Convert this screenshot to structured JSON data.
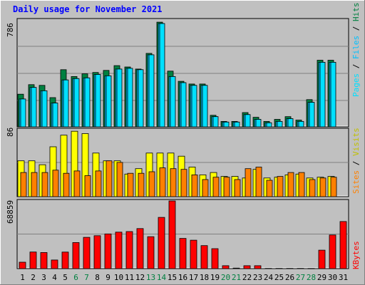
{
  "title": "Daily usage for November 2021",
  "colors": {
    "background": "#c0c0c0",
    "title": "#0000ff",
    "hits": "#008040",
    "files": "#00c0ff",
    "pages": "#00e0ff",
    "visits": "#ffff00",
    "sites": "#ff8000",
    "kbytes": "#ff0000",
    "weekend_label": "#008040",
    "weekday_label": "#000000"
  },
  "chart_data": [
    {
      "type": "bar",
      "title": "Daily usage for November 2021",
      "ylim": [
        0,
        786
      ],
      "y_tick_label": "786",
      "side_label": {
        "parts": [
          "Pages",
          "Files",
          "Hits"
        ],
        "separator": " / "
      },
      "categories": [
        "1",
        "2",
        "3",
        "4",
        "5",
        "6",
        "7",
        "8",
        "9",
        "10",
        "11",
        "12",
        "13",
        "14",
        "15",
        "16",
        "17",
        "18",
        "19",
        "20",
        "21",
        "22",
        "23",
        "24",
        "25",
        "26",
        "27",
        "28",
        "29",
        "30",
        "31"
      ],
      "weekend_days": [
        "6",
        "7",
        "13",
        "14",
        "20",
        "21",
        "27",
        "28"
      ],
      "series": [
        {
          "name": "Hits",
          "values": [
            240,
            310,
            305,
            215,
            420,
            370,
            390,
            400,
            415,
            450,
            440,
            425,
            540,
            770,
            410,
            335,
            315,
            315,
            85,
            40,
            40,
            105,
            70,
            40,
            55,
            75,
            50,
            200,
            490,
            490,
            null
          ]
        },
        {
          "name": "Files",
          "values": [
            205,
            290,
            265,
            175,
            345,
            355,
            360,
            385,
            375,
            425,
            430,
            420,
            530,
            760,
            370,
            325,
            305,
            305,
            75,
            35,
            35,
            90,
            55,
            30,
            40,
            60,
            40,
            180,
            475,
            475,
            null
          ]
        },
        {
          "name": "Pages",
          "values": [
            205,
            290,
            265,
            175,
            345,
            355,
            360,
            385,
            375,
            425,
            430,
            420,
            530,
            760,
            370,
            325,
            305,
            305,
            75,
            35,
            35,
            90,
            55,
            30,
            40,
            60,
            40,
            180,
            475,
            475,
            null
          ]
        }
      ]
    },
    {
      "type": "bar",
      "ylim": [
        0,
        86
      ],
      "y_tick_label": "86",
      "side_label": {
        "parts": [
          "Sites",
          "Visits"
        ],
        "separator": " / "
      },
      "categories": [
        "1",
        "2",
        "3",
        "4",
        "5",
        "6",
        "7",
        "8",
        "9",
        "10",
        "11",
        "12",
        "13",
        "14",
        "15",
        "16",
        "17",
        "18",
        "19",
        "20",
        "21",
        "22",
        "23",
        "24",
        "25",
        "26",
        "27",
        "28",
        "29",
        "30",
        "31"
      ],
      "series": [
        {
          "name": "Visits",
          "values": [
            46,
            46,
            41,
            64,
            79,
            84,
            81,
            56,
            46,
            46,
            29,
            36,
            56,
            56,
            56,
            52,
            38,
            28,
            31,
            26,
            26,
            24,
            35,
            24,
            25,
            28,
            29,
            24,
            25,
            26,
            null
          ]
        },
        {
          "name": "Sites",
          "values": [
            31,
            31,
            31,
            34,
            30,
            33,
            27,
            33,
            46,
            44,
            30,
            30,
            32,
            37,
            36,
            35,
            28,
            22,
            25,
            25,
            22,
            36,
            38,
            21,
            26,
            31,
            31,
            22,
            24,
            25,
            null
          ]
        }
      ]
    },
    {
      "type": "bar",
      "ylim": [
        0,
        68859
      ],
      "y_tick_label": "68859",
      "side_label": {
        "parts": [
          "KBytes"
        ],
        "separator": ""
      },
      "categories": [
        "1",
        "2",
        "3",
        "4",
        "5",
        "6",
        "7",
        "8",
        "9",
        "10",
        "11",
        "12",
        "13",
        "14",
        "15",
        "16",
        "17",
        "18",
        "19",
        "20",
        "21",
        "22",
        "23",
        "24",
        "25",
        "26",
        "27",
        "28",
        "29",
        "30",
        "31"
      ],
      "series": [
        {
          "name": "KBytes",
          "values": [
            6500,
            16900,
            16400,
            8800,
            16800,
            26500,
            31800,
            33500,
            35300,
            37100,
            37700,
            40700,
            32500,
            52100,
            68859,
            30700,
            28900,
            23400,
            20300,
            3000,
            600,
            3000,
            3000,
            300,
            300,
            300,
            300,
            250,
            18800,
            34200,
            47900
          ]
        }
      ]
    }
  ]
}
